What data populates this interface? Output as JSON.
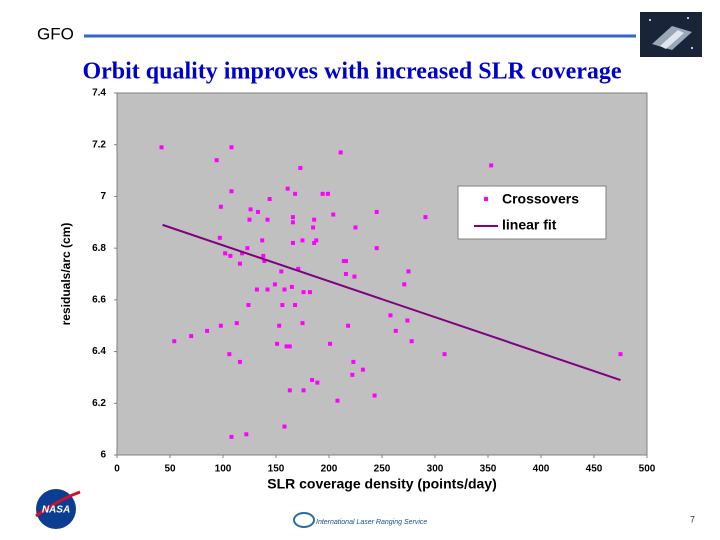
{
  "header": {
    "label": "GFO"
  },
  "footer": {
    "organization": "International Laser Ranging Service",
    "agency": "NASA",
    "page": "7"
  },
  "chart_data": {
    "type": "scatter",
    "title": "Orbit quality improves with increased SLR coverage",
    "x_label": "SLR coverage density (points/day)",
    "y_label": "residuals/arc (cm)",
    "xlim": [
      0,
      500
    ],
    "xticks": [
      0,
      50,
      100,
      150,
      200,
      250,
      300,
      350,
      400,
      450,
      500
    ],
    "ylim": [
      6,
      7.4
    ],
    "yticks": [
      6,
      6.2,
      6.4,
      6.6,
      6.8,
      7,
      7.2,
      7.4
    ],
    "grid": false,
    "legend": "upper right",
    "background": "#c0c0c0",
    "series": [
      {
        "name": "Crossovers",
        "color": "#ff00ff",
        "kind": "points",
        "x": [
          42,
          108,
          94,
          211,
          173,
          353,
          161,
          108,
          168,
          144,
          194,
          199,
          98,
          126,
          133,
          245,
          291,
          166,
          142,
          125,
          166,
          186,
          204,
          185,
          225,
          97,
          137,
          166,
          175,
          188,
          186,
          123,
          102,
          107,
          118,
          138,
          245,
          214,
          216,
          116,
          139,
          155,
          171,
          216,
          224,
          275,
          149,
          165,
          132,
          158,
          142,
          176,
          182,
          271,
          124,
          156,
          168,
          258,
          113,
          175,
          85,
          98,
          70,
          54,
          153,
          218,
          263,
          274,
          151,
          163,
          160,
          201,
          278,
          309,
          475,
          106,
          116,
          223,
          222,
          232,
          184,
          189,
          163,
          176,
          208,
          243,
          158,
          122,
          108
        ],
        "values": [
          7.19,
          7.19,
          7.14,
          7.17,
          7.11,
          7.12,
          7.03,
          7.02,
          7.01,
          6.99,
          7.01,
          7.01,
          6.96,
          6.95,
          6.94,
          6.94,
          6.92,
          6.92,
          6.91,
          6.91,
          6.9,
          6.91,
          6.93,
          6.88,
          6.88,
          6.84,
          6.83,
          6.82,
          6.83,
          6.83,
          6.82,
          6.8,
          6.78,
          6.77,
          6.78,
          6.77,
          6.8,
          6.75,
          6.75,
          6.74,
          6.75,
          6.71,
          6.72,
          6.7,
          6.69,
          6.71,
          6.66,
          6.65,
          6.64,
          6.64,
          6.64,
          6.63,
          6.63,
          6.66,
          6.58,
          6.58,
          6.58,
          6.54,
          6.51,
          6.51,
          6.48,
          6.5,
          6.46,
          6.44,
          6.5,
          6.5,
          6.48,
          6.52,
          6.43,
          6.42,
          6.42,
          6.43,
          6.44,
          6.39,
          6.39,
          6.39,
          6.36,
          6.36,
          6.31,
          6.33,
          6.29,
          6.28,
          6.25,
          6.25,
          6.21,
          6.23,
          6.11,
          6.08,
          6.07
        ]
      },
      {
        "name": "linear fit",
        "color": "#800080",
        "kind": "line",
        "x": [
          43,
          475
        ],
        "values": [
          6.89,
          6.29
        ]
      }
    ]
  }
}
